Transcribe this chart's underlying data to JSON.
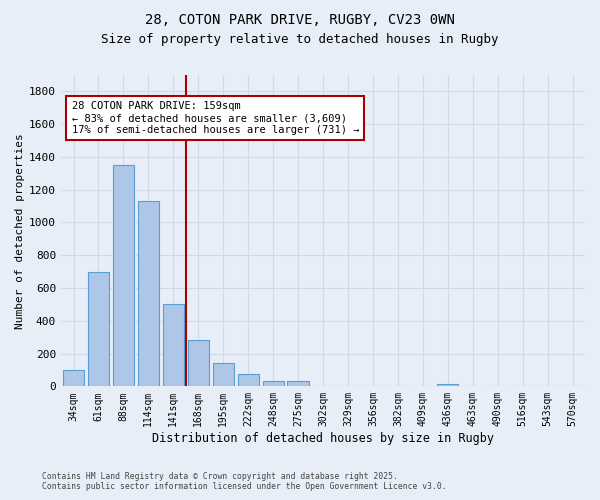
{
  "title1": "28, COTON PARK DRIVE, RUGBY, CV23 0WN",
  "title2": "Size of property relative to detached houses in Rugby",
  "xlabel": "Distribution of detached houses by size in Rugby",
  "ylabel": "Number of detached properties",
  "categories": [
    "34sqm",
    "61sqm",
    "88sqm",
    "114sqm",
    "141sqm",
    "168sqm",
    "195sqm",
    "222sqm",
    "248sqm",
    "275sqm",
    "302sqm",
    "329sqm",
    "356sqm",
    "382sqm",
    "409sqm",
    "436sqm",
    "463sqm",
    "490sqm",
    "516sqm",
    "543sqm",
    "570sqm"
  ],
  "values": [
    100,
    700,
    1350,
    1130,
    500,
    280,
    145,
    75,
    30,
    30,
    0,
    0,
    0,
    0,
    0,
    15,
    0,
    0,
    0,
    0,
    0
  ],
  "bar_color": "#aec6e8",
  "bar_edge_color": "#5a9fd4",
  "background_color": "#e8eef8",
  "grid_color": "#d0d8ec",
  "vline_x": 4.5,
  "vline_color": "#aa0000",
  "annotation_text": "28 COTON PARK DRIVE: 159sqm\n← 83% of detached houses are smaller (3,609)\n17% of semi-detached houses are larger (731) →",
  "annotation_box_color": "#ffffff",
  "annotation_box_edge": "#aa0000",
  "ylim": [
    0,
    1900
  ],
  "yticks": [
    0,
    200,
    400,
    600,
    800,
    1000,
    1200,
    1400,
    1600,
    1800
  ],
  "footer1": "Contains HM Land Registry data © Crown copyright and database right 2025.",
  "footer2": "Contains public sector information licensed under the Open Government Licence v3.0."
}
